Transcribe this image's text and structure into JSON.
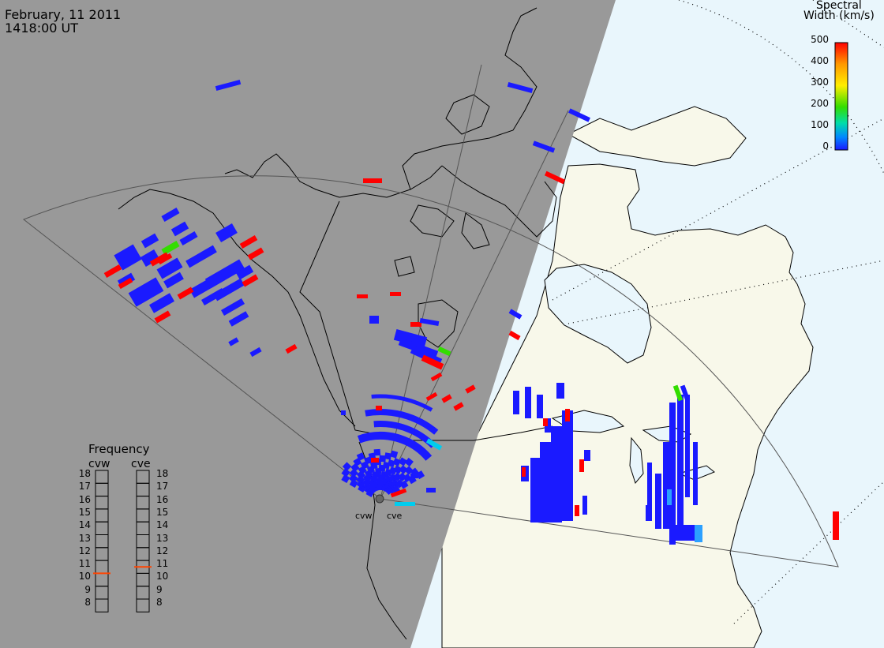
{
  "title": {
    "date": "February, 11 2011",
    "time": "1418:00 UT"
  },
  "colorbar": {
    "title_line1": "Spectral",
    "title_line2": "Width (km/s)",
    "ticks": [
      "500",
      "400",
      "300",
      "200",
      "100",
      "0"
    ],
    "gradient": [
      "#ff0000",
      "#ff9900",
      "#ffee00",
      "#33dd00",
      "#00ddaa",
      "#0088ff",
      "#1a1aff"
    ]
  },
  "frequency_panel": {
    "title": "Frequency",
    "radars": [
      {
        "name": "cvw",
        "selected_mhz": 10.5
      },
      {
        "name": "cve",
        "selected_mhz": 11
      }
    ],
    "levels": [
      "18",
      "17",
      "16",
      "15",
      "14",
      "13",
      "12",
      "11",
      "10",
      "9",
      "8"
    ],
    "marker_color": "#ff4400"
  },
  "radar_sites": [
    "cvw",
    "cve"
  ],
  "colors": {
    "night_shade": "#999999",
    "land": "#f8f8ea",
    "ocean": "#e9f6fc",
    "low_width": "#1a1aff",
    "high_width": "#ff0000"
  }
}
